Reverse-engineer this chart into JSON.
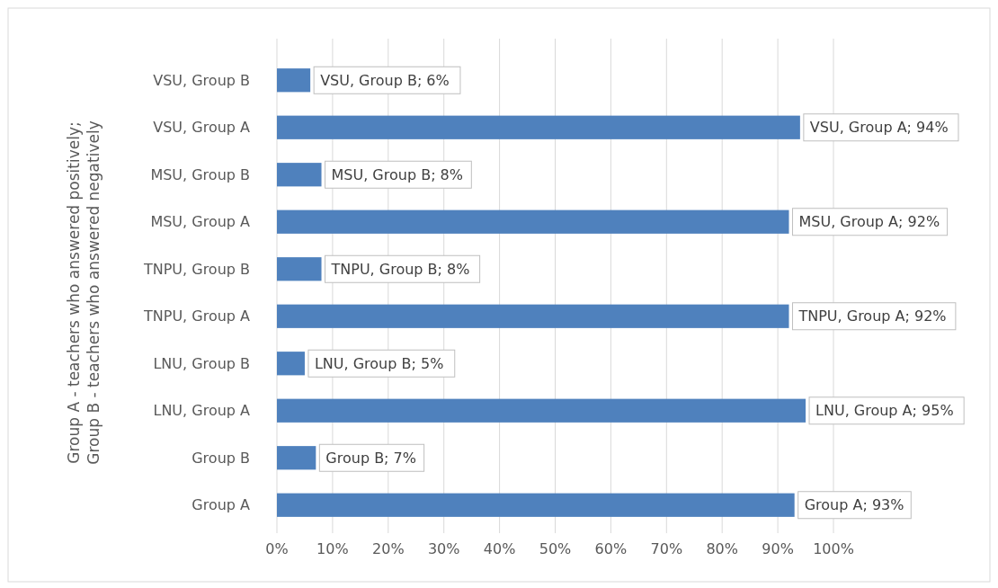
{
  "chart_data": {
    "type": "bar",
    "orientation": "horizontal",
    "ylabel": "Group A - teachers who answered positively;\nGroup B - teachers who answered negatively",
    "categories": [
      "VSU, Group B",
      "VSU, Group A",
      "MSU, Group B",
      "MSU, Group A",
      "TNPU, Group B",
      "TNPU, Group A",
      "LNU, Group B",
      "LNU, Group A",
      "Group B",
      "Group A"
    ],
    "values": [
      6,
      94,
      8,
      92,
      8,
      92,
      5,
      95,
      7,
      93
    ],
    "value_labels": [
      "VSU, Group B; 6%",
      "VSU, Group A; 94%",
      "MSU, Group B; 8%",
      "MSU, Group A; 92%",
      "TNPU, Group B; 8%",
      "TNPU, Group A; 92%",
      "LNU, Group B; 5%",
      "LNU, Group A; 95%",
      "Group B; 7%",
      "Group A; 93%"
    ],
    "color": "#4f81bd",
    "xlim": [
      0,
      100
    ],
    "xticks": [
      {
        "value": 0,
        "label": "0%"
      },
      {
        "value": 10,
        "label": "10%"
      },
      {
        "value": 20,
        "label": "20%"
      },
      {
        "value": 30,
        "label": "30%"
      },
      {
        "value": 40,
        "label": "40%"
      },
      {
        "value": 50,
        "label": "50%"
      },
      {
        "value": 60,
        "label": "60%"
      },
      {
        "value": 70,
        "label": "70%"
      },
      {
        "value": 80,
        "label": "80%"
      },
      {
        "value": 90,
        "label": "90%"
      },
      {
        "value": 100,
        "label": "100%"
      }
    ],
    "grid": "x"
  }
}
